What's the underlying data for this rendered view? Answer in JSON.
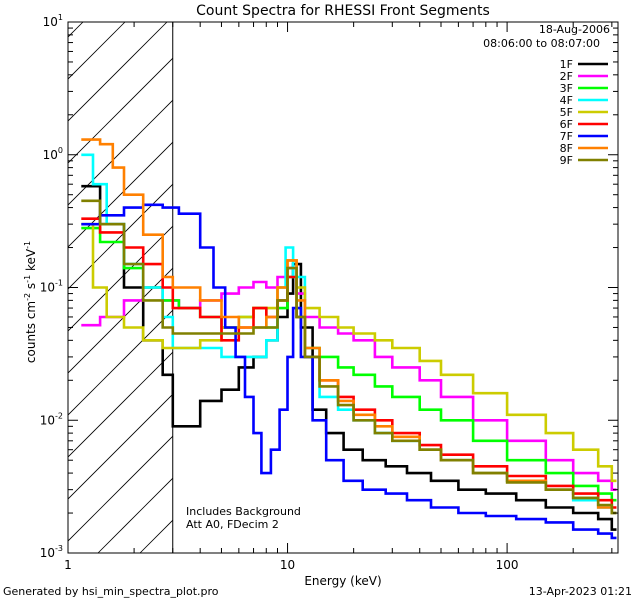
{
  "chart_data": {
    "type": "line",
    "title": "Count Spectra for RHESSI Front Segments",
    "xlabel": "Energy (keV)",
    "ylabel_parts": {
      "pre": "counts cm",
      "e1": "-2",
      "mid": " s",
      "e2": "-1",
      "post": " keV",
      "e3": "-1"
    },
    "xscale": "log",
    "yscale": "log",
    "xlim": [
      1,
      320
    ],
    "ylim": [
      0.001,
      10
    ],
    "x_ticks": [
      {
        "v": 1,
        "label": "1"
      },
      {
        "v": 10,
        "label": "10"
      },
      {
        "v": 100,
        "label": "100"
      }
    ],
    "y_ticks": [
      {
        "v": 0.001,
        "b": "10",
        "e": "-3"
      },
      {
        "v": 0.01,
        "b": "10",
        "e": "-2"
      },
      {
        "v": 0.1,
        "b": "10",
        "e": "-1"
      },
      {
        "v": 1,
        "b": "10",
        "e": "0"
      },
      {
        "v": 10,
        "b": "10",
        "e": "1"
      }
    ],
    "hatched_region_keV": [
      1,
      3
    ],
    "date": "18-Aug-2006",
    "time_range": "08:06:00 to 08:07:00",
    "annotation_1": "Includes Background",
    "annotation_2": "Att A0, FDecim 2",
    "legend_position": "top-right",
    "series": [
      {
        "name": "1F",
        "color": "#000000",
        "pts": [
          [
            1.15,
            0.58
          ],
          [
            1.4,
            0.3
          ],
          [
            1.8,
            0.1
          ],
          [
            2.2,
            0.04
          ],
          [
            2.7,
            0.022
          ],
          [
            3.0,
            0.009
          ],
          [
            4,
            0.014
          ],
          [
            5,
            0.017
          ],
          [
            6,
            0.025
          ],
          [
            7,
            0.03
          ],
          [
            8,
            0.04
          ],
          [
            9,
            0.06
          ],
          [
            10,
            0.09
          ],
          [
            10.6,
            0.15
          ],
          [
            11.5,
            0.05
          ],
          [
            13,
            0.012
          ],
          [
            15,
            0.008
          ],
          [
            18,
            0.006
          ],
          [
            22,
            0.005
          ],
          [
            28,
            0.0045
          ],
          [
            35,
            0.004
          ],
          [
            45,
            0.0035
          ],
          [
            60,
            0.003
          ],
          [
            80,
            0.0028
          ],
          [
            110,
            0.0025
          ],
          [
            150,
            0.0022
          ],
          [
            200,
            0.002
          ],
          [
            260,
            0.0018
          ],
          [
            300,
            0.0015
          ]
        ]
      },
      {
        "name": "2F",
        "color": "#ff00ff",
        "pts": [
          [
            1.15,
            0.052
          ],
          [
            1.4,
            0.06
          ],
          [
            1.8,
            0.08
          ],
          [
            2.2,
            0.1
          ],
          [
            2.7,
            0.08
          ],
          [
            3.2,
            0.07
          ],
          [
            4,
            0.08
          ],
          [
            5,
            0.09
          ],
          [
            6,
            0.1
          ],
          [
            7,
            0.11
          ],
          [
            8,
            0.1
          ],
          [
            9,
            0.12
          ],
          [
            10,
            0.14
          ],
          [
            11,
            0.09
          ],
          [
            12,
            0.06
          ],
          [
            14,
            0.05
          ],
          [
            17,
            0.045
          ],
          [
            20,
            0.04
          ],
          [
            25,
            0.03
          ],
          [
            30,
            0.025
          ],
          [
            40,
            0.02
          ],
          [
            50,
            0.015
          ],
          [
            70,
            0.01
          ],
          [
            100,
            0.007
          ],
          [
            150,
            0.005
          ],
          [
            200,
            0.004
          ],
          [
            260,
            0.0035
          ],
          [
            300,
            0.003
          ]
        ]
      },
      {
        "name": "3F",
        "color": "#00ff00",
        "pts": [
          [
            1.15,
            0.28
          ],
          [
            1.4,
            0.22
          ],
          [
            1.8,
            0.14
          ],
          [
            2.2,
            0.1
          ],
          [
            2.7,
            0.08
          ],
          [
            3.2,
            0.07
          ],
          [
            4,
            0.06
          ],
          [
            5,
            0.05
          ],
          [
            6,
            0.06
          ],
          [
            7,
            0.07
          ],
          [
            8,
            0.05
          ],
          [
            9,
            0.07
          ],
          [
            10,
            0.12
          ],
          [
            11,
            0.06
          ],
          [
            12,
            0.035
          ],
          [
            14,
            0.03
          ],
          [
            17,
            0.025
          ],
          [
            20,
            0.022
          ],
          [
            25,
            0.018
          ],
          [
            30,
            0.015
          ],
          [
            40,
            0.012
          ],
          [
            50,
            0.01
          ],
          [
            70,
            0.007
          ],
          [
            100,
            0.005
          ],
          [
            150,
            0.004
          ],
          [
            200,
            0.0032
          ],
          [
            260,
            0.0028
          ],
          [
            300,
            0.0025
          ]
        ]
      },
      {
        "name": "4F",
        "color": "#00ffff",
        "pts": [
          [
            1.15,
            1.0
          ],
          [
            1.3,
            0.6
          ],
          [
            1.5,
            0.3
          ],
          [
            1.8,
            0.15
          ],
          [
            2.2,
            0.1
          ],
          [
            2.7,
            0.06
          ],
          [
            3.0,
            0.035
          ],
          [
            4,
            0.035
          ],
          [
            5,
            0.03
          ],
          [
            6,
            0.03
          ],
          [
            7,
            0.03
          ],
          [
            8,
            0.04
          ],
          [
            9,
            0.1
          ],
          [
            9.8,
            0.2
          ],
          [
            10.6,
            0.12
          ],
          [
            12,
            0.03
          ],
          [
            14,
            0.015
          ],
          [
            17,
            0.012
          ],
          [
            20,
            0.01
          ],
          [
            25,
            0.008
          ],
          [
            30,
            0.007
          ],
          [
            40,
            0.006
          ],
          [
            50,
            0.005
          ],
          [
            70,
            0.004
          ],
          [
            100,
            0.0035
          ],
          [
            150,
            0.003
          ],
          [
            200,
            0.0025
          ],
          [
            260,
            0.0022
          ],
          [
            300,
            0.002
          ]
        ]
      },
      {
        "name": "5F",
        "color": "#cccc00",
        "pts": [
          [
            1.15,
            0.3
          ],
          [
            1.3,
            0.1
          ],
          [
            1.5,
            0.06
          ],
          [
            1.8,
            0.05
          ],
          [
            2.2,
            0.04
          ],
          [
            2.7,
            0.035
          ],
          [
            3.2,
            0.035
          ],
          [
            4,
            0.04
          ],
          [
            5,
            0.05
          ],
          [
            6,
            0.06
          ],
          [
            7,
            0.07
          ],
          [
            8,
            0.07
          ],
          [
            9,
            0.1
          ],
          [
            10,
            0.16
          ],
          [
            11,
            0.1
          ],
          [
            12,
            0.07
          ],
          [
            14,
            0.06
          ],
          [
            17,
            0.05
          ],
          [
            20,
            0.045
          ],
          [
            25,
            0.04
          ],
          [
            30,
            0.035
          ],
          [
            40,
            0.028
          ],
          [
            50,
            0.022
          ],
          [
            70,
            0.016
          ],
          [
            100,
            0.011
          ],
          [
            150,
            0.008
          ],
          [
            200,
            0.006
          ],
          [
            260,
            0.0045
          ],
          [
            300,
            0.0035
          ]
        ]
      },
      {
        "name": "6F",
        "color": "#ff0000",
        "pts": [
          [
            1.15,
            0.33
          ],
          [
            1.4,
            0.26
          ],
          [
            1.8,
            0.2
          ],
          [
            2.2,
            0.15
          ],
          [
            2.7,
            0.1
          ],
          [
            3.0,
            0.07
          ],
          [
            4,
            0.06
          ],
          [
            5,
            0.04
          ],
          [
            6,
            0.05
          ],
          [
            7,
            0.07
          ],
          [
            8,
            0.06
          ],
          [
            9,
            0.08
          ],
          [
            10,
            0.12
          ],
          [
            11,
            0.06
          ],
          [
            12,
            0.03
          ],
          [
            14,
            0.02
          ],
          [
            17,
            0.015
          ],
          [
            20,
            0.012
          ],
          [
            25,
            0.01
          ],
          [
            30,
            0.008
          ],
          [
            40,
            0.0065
          ],
          [
            50,
            0.0055
          ],
          [
            70,
            0.0045
          ],
          [
            100,
            0.0038
          ],
          [
            150,
            0.0032
          ],
          [
            200,
            0.0028
          ],
          [
            260,
            0.0025
          ],
          [
            300,
            0.0022
          ]
        ]
      },
      {
        "name": "7F",
        "color": "#0000ff",
        "pts": [
          [
            1.15,
            0.3
          ],
          [
            1.4,
            0.35
          ],
          [
            1.8,
            0.4
          ],
          [
            2.2,
            0.42
          ],
          [
            2.7,
            0.4
          ],
          [
            3.2,
            0.36
          ],
          [
            4,
            0.2
          ],
          [
            4.6,
            0.1
          ],
          [
            5.2,
            0.05
          ],
          [
            5.8,
            0.03
          ],
          [
            6.4,
            0.015
          ],
          [
            7,
            0.008
          ],
          [
            7.6,
            0.004
          ],
          [
            8.4,
            0.006
          ],
          [
            9.2,
            0.012
          ],
          [
            10,
            0.03
          ],
          [
            10.6,
            0.07
          ],
          [
            11.5,
            0.03
          ],
          [
            13,
            0.01
          ],
          [
            15,
            0.005
          ],
          [
            18,
            0.0035
          ],
          [
            22,
            0.003
          ],
          [
            28,
            0.0028
          ],
          [
            35,
            0.0025
          ],
          [
            45,
            0.0022
          ],
          [
            60,
            0.002
          ],
          [
            80,
            0.0019
          ],
          [
            110,
            0.0018
          ],
          [
            150,
            0.0017
          ],
          [
            200,
            0.0015
          ],
          [
            260,
            0.0014
          ],
          [
            300,
            0.0013
          ]
        ]
      },
      {
        "name": "8F",
        "color": "#ff8000",
        "pts": [
          [
            1.15,
            1.3
          ],
          [
            1.4,
            1.2
          ],
          [
            1.6,
            0.8
          ],
          [
            1.8,
            0.5
          ],
          [
            2.2,
            0.25
          ],
          [
            2.7,
            0.12
          ],
          [
            3.0,
            0.1
          ],
          [
            4,
            0.08
          ],
          [
            5,
            0.06
          ],
          [
            6,
            0.05
          ],
          [
            7,
            0.05
          ],
          [
            8,
            0.06
          ],
          [
            9,
            0.1
          ],
          [
            10,
            0.16
          ],
          [
            11,
            0.08
          ],
          [
            12,
            0.035
          ],
          [
            14,
            0.02
          ],
          [
            17,
            0.014
          ],
          [
            20,
            0.011
          ],
          [
            25,
            0.009
          ],
          [
            30,
            0.0075
          ],
          [
            40,
            0.006
          ],
          [
            50,
            0.005
          ],
          [
            70,
            0.004
          ],
          [
            100,
            0.0035
          ],
          [
            150,
            0.003
          ],
          [
            200,
            0.0026
          ],
          [
            260,
            0.0022
          ],
          [
            300,
            0.002
          ]
        ]
      },
      {
        "name": "9F",
        "color": "#808000",
        "pts": [
          [
            1.15,
            0.45
          ],
          [
            1.4,
            0.3
          ],
          [
            1.8,
            0.15
          ],
          [
            2.2,
            0.08
          ],
          [
            2.7,
            0.05
          ],
          [
            3.0,
            0.045
          ],
          [
            4,
            0.045
          ],
          [
            5,
            0.045
          ],
          [
            6,
            0.045
          ],
          [
            7,
            0.05
          ],
          [
            8,
            0.05
          ],
          [
            9,
            0.08
          ],
          [
            10,
            0.14
          ],
          [
            11,
            0.06
          ],
          [
            12,
            0.03
          ],
          [
            14,
            0.018
          ],
          [
            17,
            0.013
          ],
          [
            20,
            0.01
          ],
          [
            25,
            0.008
          ],
          [
            30,
            0.007
          ],
          [
            40,
            0.006
          ],
          [
            50,
            0.005
          ],
          [
            70,
            0.004
          ],
          [
            100,
            0.0034
          ],
          [
            150,
            0.003
          ],
          [
            200,
            0.0026
          ],
          [
            260,
            0.0023
          ],
          [
            300,
            0.002
          ]
        ]
      }
    ]
  },
  "footer": {
    "left": "Generated by hsi_min_spectra_plot.pro",
    "right": "13-Apr-2023 01:21"
  }
}
